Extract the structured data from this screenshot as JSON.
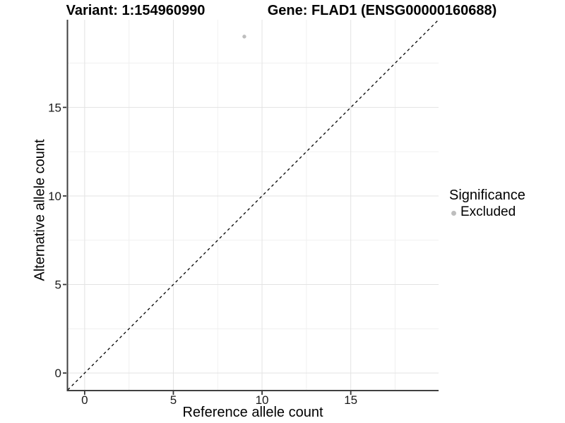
{
  "header": {
    "variant_title": "Variant: 1:154960990",
    "gene_title": "Gene: FLAD1 (ENSG00000160688)"
  },
  "axes": {
    "x_label": "Reference allele count",
    "y_label": "Alternative allele count"
  },
  "legend": {
    "title": "Significance",
    "items": [
      {
        "label": "Excluded",
        "color": "#bebebe",
        "marker": "circle-icon"
      }
    ]
  },
  "chart_data": {
    "type": "scatter",
    "titles": [
      "Variant: 1:154960990",
      "Gene: FLAD1 (ENSG00000160688)"
    ],
    "xlabel": "Reference allele count",
    "ylabel": "Alternative allele count",
    "xlim": [
      -0.95,
      19.95
    ],
    "ylim": [
      -0.95,
      19.95
    ],
    "x_ticks": [
      0,
      5,
      10,
      15
    ],
    "y_ticks": [
      0,
      5,
      10,
      15
    ],
    "x_minor_ticks": [
      2.5,
      7.5,
      12.5,
      17.5
    ],
    "y_minor_ticks": [
      2.5,
      7.5,
      12.5,
      17.5
    ],
    "grid": "major and minor, light grey on white",
    "legend_position": "right",
    "legend_title": "Significance",
    "series": [
      {
        "name": "Excluded",
        "color": "#bebebe",
        "points": [
          {
            "x": 9,
            "y": 19
          }
        ]
      }
    ],
    "reference_line": {
      "kind": "identity y = x, panel corner to corner",
      "style": "dashed",
      "color": "#000000"
    },
    "colors": {
      "background": "#ffffff",
      "major_grid": "#e3e3e3",
      "minor_grid": "#f0f0f0",
      "axis_line": "#404040",
      "tick_mark": "#333333",
      "tick_label": "#1a1a1a",
      "point": "#bebebe"
    }
  }
}
